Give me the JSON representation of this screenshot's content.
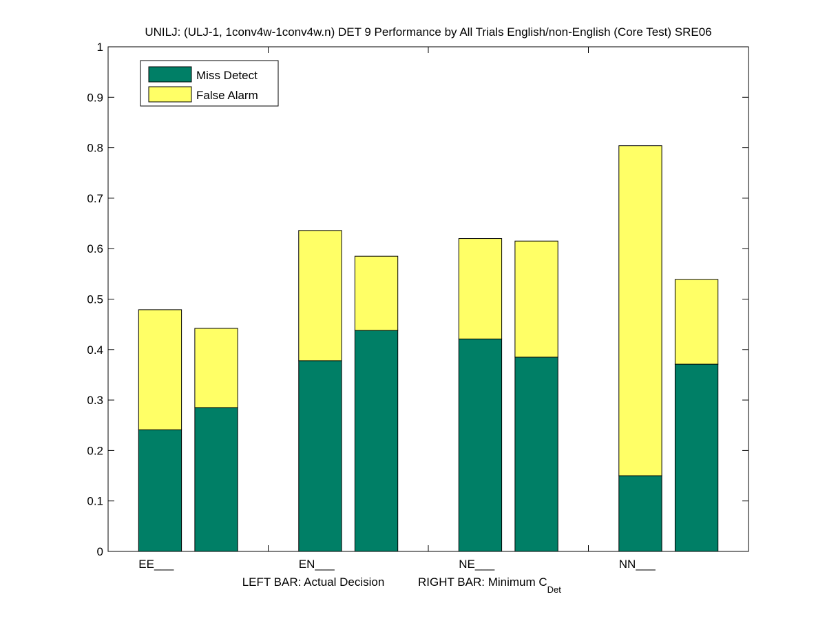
{
  "chart_data": {
    "type": "stacked-bar",
    "title": "UNILJ: (ULJ-1, 1conv4w-1conv4w.n) DET 9 Performance by All Trials English/non-English (Core Test) SRE06",
    "categories": [
      "EE___",
      "EN___",
      "NE___",
      "NN___"
    ],
    "xlabel_left": "LEFT BAR: Actual Decision",
    "xlabel_right_prefix": "RIGHT BAR: Minimum C",
    "xlabel_right_subscript": "Det",
    "ylim": [
      0,
      1
    ],
    "yticks": [
      0,
      0.1,
      0.2,
      0.3,
      0.4,
      0.5,
      0.6,
      0.7,
      0.8,
      0.9,
      1
    ],
    "ytick_labels": [
      "0",
      "0.1",
      "0.2",
      "0.3",
      "0.4",
      "0.5",
      "0.6",
      "0.7",
      "0.8",
      "0.9",
      "1"
    ],
    "legend_position": "top-left",
    "series": [
      {
        "name": "Miss Detect",
        "color": "#007f66"
      },
      {
        "name": "False Alarm",
        "color": "#ffff66"
      }
    ],
    "bars": [
      {
        "category": "EE___",
        "which": "Actual Decision",
        "miss": 0.241,
        "false_alarm": 0.238,
        "total": 0.479
      },
      {
        "category": "EE___",
        "which": "Minimum C_Det",
        "miss": 0.285,
        "false_alarm": 0.157,
        "total": 0.442
      },
      {
        "category": "EN___",
        "which": "Actual Decision",
        "miss": 0.378,
        "false_alarm": 0.258,
        "total": 0.636
      },
      {
        "category": "EN___",
        "which": "Minimum C_Det",
        "miss": 0.438,
        "false_alarm": 0.147,
        "total": 0.585
      },
      {
        "category": "NE___",
        "which": "Actual Decision",
        "miss": 0.421,
        "false_alarm": 0.199,
        "total": 0.62
      },
      {
        "category": "NE___",
        "which": "Minimum C_Det",
        "miss": 0.385,
        "false_alarm": 0.23,
        "total": 0.615
      },
      {
        "category": "NN___",
        "which": "Actual Decision",
        "miss": 0.15,
        "false_alarm": 0.654,
        "total": 0.804
      },
      {
        "category": "NN___",
        "which": "Minimum C_Det",
        "miss": 0.371,
        "false_alarm": 0.168,
        "total": 0.539
      }
    ]
  }
}
